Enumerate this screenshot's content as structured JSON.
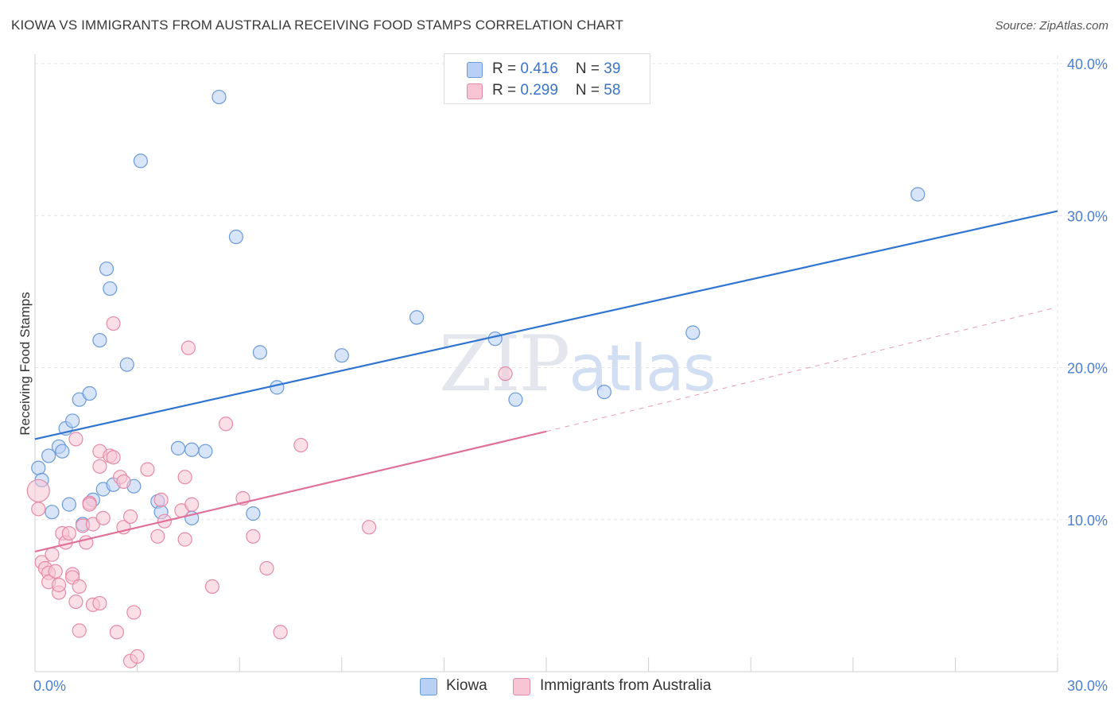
{
  "title": "KIOWA VS IMMIGRANTS FROM AUSTRALIA RECEIVING FOOD STAMPS CORRELATION CHART",
  "source": "Source: ZipAtlas.com",
  "watermark": {
    "zip": "ZIP",
    "atlas": "atlas"
  },
  "legend_top": {
    "rows": [
      {
        "r_label": "R = ",
        "r_value": "0.416",
        "n_label": "N = ",
        "n_value": "39"
      },
      {
        "r_label": "R = ",
        "r_value": "0.299",
        "n_label": "N = ",
        "n_value": "58"
      }
    ]
  },
  "legend_bottom": {
    "items": [
      "Kiowa",
      "Immigrants from Australia"
    ]
  },
  "colors": {
    "kiowa_fill": "#b8d0f4",
    "kiowa_stroke": "#6a9ad8",
    "kiowa_line": "#2f74d0",
    "aus_fill": "#f8c5d4",
    "aus_stroke": "#e58aa8",
    "aus_line": "#e0719a",
    "grid": "#e6e6e6",
    "tick_text": "#4a7fd0"
  },
  "chart_data": {
    "type": "scatter",
    "title": "KIOWA VS IMMIGRANTS FROM AUSTRALIA RECEIVING FOOD STAMPS CORRELATION CHART",
    "xlabel": "",
    "ylabel": "Receiving Food Stamps",
    "xlim": [
      0,
      30
    ],
    "ylim": [
      0,
      40
    ],
    "x_tick_labels": [
      "0.0%",
      "30.0%"
    ],
    "y_ticks": [
      10,
      20,
      30,
      40
    ],
    "y_tick_labels": [
      "10.0%",
      "20.0%",
      "30.0%",
      "40.0%"
    ],
    "grid": true,
    "legend": "bottom",
    "series": [
      {
        "name": "Kiowa",
        "r": 0.416,
        "n": 39,
        "trend": {
          "x": [
            0,
            30
          ],
          "y": [
            15.3,
            30.3
          ],
          "dashed_extension": false
        },
        "points": [
          [
            0.1,
            13.4
          ],
          [
            0.2,
            12.6
          ],
          [
            0.4,
            14.2
          ],
          [
            0.5,
            10.5
          ],
          [
            0.7,
            14.8
          ],
          [
            0.8,
            14.5
          ],
          [
            0.9,
            16.0
          ],
          [
            1.0,
            11.0
          ],
          [
            1.1,
            16.5
          ],
          [
            1.3,
            17.9
          ],
          [
            1.4,
            9.7
          ],
          [
            1.6,
            18.3
          ],
          [
            1.7,
            11.3
          ],
          [
            1.9,
            21.8
          ],
          [
            2.0,
            12.0
          ],
          [
            2.1,
            26.5
          ],
          [
            2.2,
            25.2
          ],
          [
            2.3,
            12.3
          ],
          [
            2.7,
            20.2
          ],
          [
            2.9,
            12.2
          ],
          [
            3.1,
            33.6
          ],
          [
            3.6,
            11.2
          ],
          [
            3.7,
            10.5
          ],
          [
            4.2,
            14.7
          ],
          [
            4.6,
            14.6
          ],
          [
            4.6,
            10.1
          ],
          [
            5.0,
            14.5
          ],
          [
            5.4,
            37.8
          ],
          [
            5.9,
            28.6
          ],
          [
            6.4,
            10.4
          ],
          [
            6.6,
            21.0
          ],
          [
            7.1,
            18.7
          ],
          [
            9.0,
            20.8
          ],
          [
            11.2,
            23.3
          ],
          [
            13.5,
            21.9
          ],
          [
            14.1,
            17.9
          ],
          [
            16.7,
            18.4
          ],
          [
            19.3,
            22.3
          ],
          [
            25.9,
            31.4
          ]
        ]
      },
      {
        "name": "Immigrants from Australia",
        "r": 0.299,
        "n": 58,
        "trend": {
          "x": [
            0,
            15.0
          ],
          "y": [
            7.9,
            15.8
          ],
          "dashed_extension": {
            "x": [
              15.0,
              30
            ],
            "y": [
              15.8,
              23.9
            ]
          }
        },
        "points": [
          [
            0.1,
            11.9
          ],
          [
            0.1,
            10.7
          ],
          [
            0.2,
            7.2
          ],
          [
            0.3,
            6.8
          ],
          [
            0.4,
            6.5
          ],
          [
            0.4,
            5.9
          ],
          [
            0.5,
            7.7
          ],
          [
            0.6,
            6.6
          ],
          [
            0.7,
            5.2
          ],
          [
            0.7,
            5.7
          ],
          [
            0.8,
            9.1
          ],
          [
            0.9,
            8.5
          ],
          [
            1.0,
            9.1
          ],
          [
            1.1,
            6.4
          ],
          [
            1.1,
            6.2
          ],
          [
            1.2,
            15.3
          ],
          [
            1.2,
            4.6
          ],
          [
            1.3,
            5.6
          ],
          [
            1.3,
            2.7
          ],
          [
            1.4,
            9.6
          ],
          [
            1.5,
            8.5
          ],
          [
            1.6,
            11.1
          ],
          [
            1.6,
            11.0
          ],
          [
            1.7,
            9.7
          ],
          [
            1.7,
            4.4
          ],
          [
            1.9,
            4.5
          ],
          [
            1.9,
            13.5
          ],
          [
            1.9,
            14.5
          ],
          [
            2.0,
            10.1
          ],
          [
            2.2,
            14.2
          ],
          [
            2.3,
            14.1
          ],
          [
            2.3,
            22.9
          ],
          [
            2.4,
            2.6
          ],
          [
            2.5,
            12.8
          ],
          [
            2.6,
            12.5
          ],
          [
            2.6,
            9.5
          ],
          [
            2.8,
            0.7
          ],
          [
            2.8,
            10.2
          ],
          [
            2.9,
            3.9
          ],
          [
            3.0,
            1.0
          ],
          [
            3.3,
            13.3
          ],
          [
            3.6,
            8.9
          ],
          [
            3.7,
            11.3
          ],
          [
            3.8,
            9.9
          ],
          [
            4.3,
            10.6
          ],
          [
            4.4,
            12.8
          ],
          [
            4.4,
            8.7
          ],
          [
            4.5,
            21.3
          ],
          [
            4.6,
            11.0
          ],
          [
            5.2,
            5.6
          ],
          [
            5.6,
            16.3
          ],
          [
            6.1,
            11.4
          ],
          [
            6.4,
            8.9
          ],
          [
            6.8,
            6.8
          ],
          [
            7.2,
            2.6
          ],
          [
            7.8,
            14.9
          ],
          [
            9.8,
            9.5
          ],
          [
            13.8,
            19.6
          ]
        ]
      }
    ]
  }
}
